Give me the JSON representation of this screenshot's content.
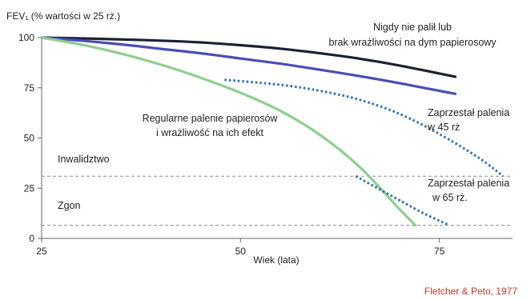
{
  "chart_data": {
    "type": "line",
    "title": "",
    "ylabel": "FEV₁ (% wartości w 25 rż.)",
    "xlabel": "Wiek (lata)",
    "xlim": [
      25,
      84
    ],
    "ylim": [
      0,
      100
    ],
    "x_ticks": [
      "25",
      "50",
      "75"
    ],
    "y_ticks": [
      "0",
      "25",
      "50",
      "75",
      "100"
    ],
    "grid": false,
    "series": [
      {
        "name": "Nigdy nie palił lub brak wrażliwości na dym papierosowy",
        "color": "#1b2233",
        "style": "solid",
        "x": [
          25,
          30,
          35,
          40,
          45,
          50,
          55,
          60,
          65,
          70,
          77
        ],
        "y": [
          100,
          99.6,
          99.1,
          98.5,
          97.6,
          96.2,
          94.5,
          92.2,
          89.5,
          86.1,
          80.5
        ]
      },
      {
        "name": "",
        "color": "#4b4db5",
        "style": "solid",
        "x": [
          25,
          30,
          35,
          40,
          45,
          50,
          55,
          60,
          65,
          70,
          77
        ],
        "y": [
          100,
          98.5,
          96.6,
          94.4,
          92.2,
          89.6,
          87.0,
          84.0,
          80.8,
          77.3,
          72.0
        ]
      },
      {
        "name": "Regularne palenie papierosów i wrażliwość na ich efekt",
        "color": "#8fce8f",
        "style": "solid",
        "x": [
          25,
          30,
          35,
          40,
          45,
          50,
          55,
          60,
          65,
          70,
          72
        ],
        "y": [
          100,
          96.5,
          92,
          86.5,
          80,
          72.5,
          63.5,
          51.5,
          35.5,
          14.5,
          6.5
        ]
      },
      {
        "name": "Zaprzestał palenia w 45 rż",
        "color": "#2e6fb5",
        "style": "dotted",
        "x": [
          48,
          55,
          60,
          65,
          70,
          75,
          80,
          83
        ],
        "y": [
          79,
          76.5,
          73.5,
          69,
          62,
          52,
          40,
          31
        ]
      },
      {
        "name": "Zaprzestał palenia w 65 rż",
        "color": "#2e6fb5",
        "style": "dotted",
        "x": [
          64.5,
          67,
          70,
          73,
          76
        ],
        "y": [
          31,
          25.5,
          19,
          12.5,
          7
        ]
      }
    ],
    "reference_lines": [
      {
        "y": 31,
        "label": "Inwalidztwo",
        "style": "dashed"
      },
      {
        "y": 6.5,
        "label": "Zgon",
        "style": "dashed"
      }
    ],
    "annotations": [
      {
        "lines": [
          "Nigdy nie palił lub",
          "brak wrażliwości na dym papierosowy"
        ]
      },
      {
        "lines": [
          "Regularne palenie papierosów",
          "i wrażliwość na ich efekt"
        ]
      },
      {
        "lines": [
          "Zaprzestał palenia",
          "w 45 rż"
        ]
      },
      {
        "lines": [
          "Zaprzestał palenia",
          "w 65 rż."
        ]
      }
    ],
    "source": "Fletcher & Peto, 1977"
  }
}
